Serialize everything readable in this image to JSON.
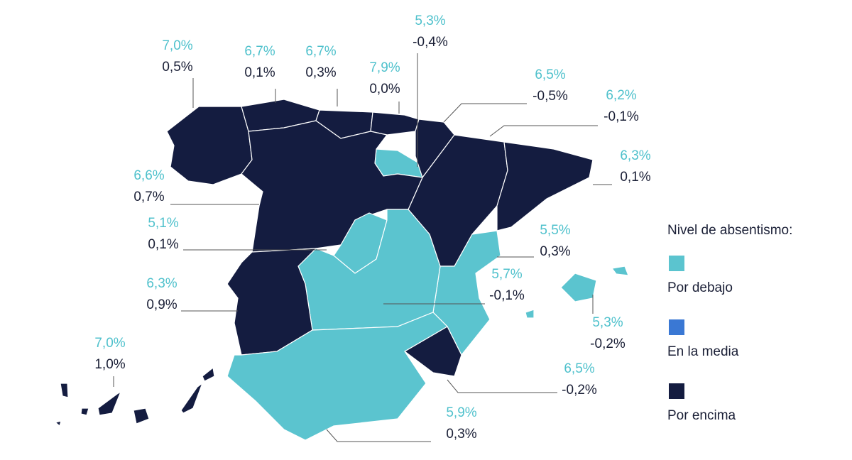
{
  "legend": {
    "title": "Nivel de absentismo:",
    "items": [
      {
        "label": "Por debajo",
        "color": "#5bc4cf"
      },
      {
        "label": "En la media",
        "color": "#3a78d4"
      },
      {
        "label": "Por encima",
        "color": "#141c40"
      }
    ]
  },
  "regions": [
    {
      "rate": "7,0%",
      "change": "0,5%",
      "color": "#141c40"
    },
    {
      "rate": "6,7%",
      "change": "0,1%",
      "color": "#141c40"
    },
    {
      "rate": "6,7%",
      "change": "0,3%",
      "color": "#141c40"
    },
    {
      "rate": "7,9%",
      "change": "0,0%",
      "color": "#141c40"
    },
    {
      "rate": "5,3%",
      "change": "-0,4%",
      "color": "#5bc4cf"
    },
    {
      "rate": "6,5%",
      "change": "-0,5%",
      "color": "#141c40"
    },
    {
      "rate": "6,2%",
      "change": "-0,1%",
      "color": "#141c40"
    },
    {
      "rate": "6,3%",
      "change": "0,1%",
      "color": "#141c40"
    },
    {
      "rate": "6,6%",
      "change": "0,7%",
      "color": "#141c40"
    },
    {
      "rate": "5,1%",
      "change": "0,1%",
      "color": "#5bc4cf"
    },
    {
      "rate": "5,5%",
      "change": "0,3%",
      "color": "#5bc4cf"
    },
    {
      "rate": "5,7%",
      "change": "-0,1%",
      "color": "#5bc4cf"
    },
    {
      "rate": "5,3%",
      "change": "-0,2%",
      "color": "#5bc4cf"
    },
    {
      "rate": "6,3%",
      "change": "0,9%",
      "color": "#141c40"
    },
    {
      "rate": "7,0%",
      "change": "1,0%",
      "color": "#141c40"
    },
    {
      "rate": "6,5%",
      "change": "-0,2%",
      "color": "#141c40"
    },
    {
      "rate": "5,9%",
      "change": "0,3%",
      "color": "#5bc4cf"
    }
  ]
}
